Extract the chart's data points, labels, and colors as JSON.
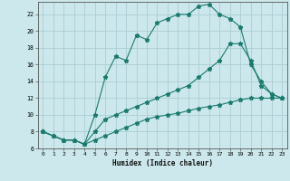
{
  "xlabel": "Humidex (Indice chaleur)",
  "bg_color": "#cce8ec",
  "grid_color": "#aacdd4",
  "line_color": "#1a7a6e",
  "line1_x": [
    0,
    1,
    2,
    3,
    4,
    5,
    6,
    7,
    8,
    9,
    10,
    11,
    12,
    13,
    14,
    15,
    16,
    17,
    18,
    19,
    20,
    21,
    22,
    23
  ],
  "line1_y": [
    8,
    7.5,
    7,
    7,
    6.5,
    10,
    14.5,
    17,
    16.5,
    19.5,
    19,
    21,
    21.5,
    22,
    22,
    23,
    23.2,
    22,
    21.5,
    20.5,
    16,
    14,
    12.5,
    12
  ],
  "line2_x": [
    0,
    1,
    2,
    3,
    4,
    5,
    6,
    7,
    8,
    9,
    10,
    11,
    12,
    13,
    14,
    15,
    16,
    17,
    18,
    19,
    20,
    21,
    22,
    23
  ],
  "line2_y": [
    8,
    7.5,
    7,
    7,
    6.5,
    8,
    9.5,
    10,
    10.5,
    11,
    11.5,
    12,
    12.5,
    13,
    13.5,
    14.5,
    15.5,
    16.5,
    18.5,
    18.5,
    16.5,
    13.5,
    12.5,
    12
  ],
  "line3_x": [
    0,
    1,
    2,
    3,
    4,
    5,
    6,
    7,
    8,
    9,
    10,
    11,
    12,
    13,
    14,
    15,
    16,
    17,
    18,
    19,
    20,
    21,
    22,
    23
  ],
  "line3_y": [
    8,
    7.5,
    7,
    7,
    6.5,
    7,
    7.5,
    8,
    8.5,
    9,
    9.5,
    9.8,
    10,
    10.2,
    10.5,
    10.8,
    11,
    11.2,
    11.5,
    11.8,
    12,
    12,
    12,
    12
  ],
  "ylim": [
    6,
    23.5
  ],
  "xlim": [
    -0.5,
    23.5
  ],
  "yticks": [
    6,
    8,
    10,
    12,
    14,
    16,
    18,
    20,
    22
  ],
  "xticks": [
    0,
    1,
    2,
    3,
    4,
    5,
    6,
    7,
    8,
    9,
    10,
    11,
    12,
    13,
    14,
    15,
    16,
    17,
    18,
    19,
    20,
    21,
    22,
    23
  ]
}
